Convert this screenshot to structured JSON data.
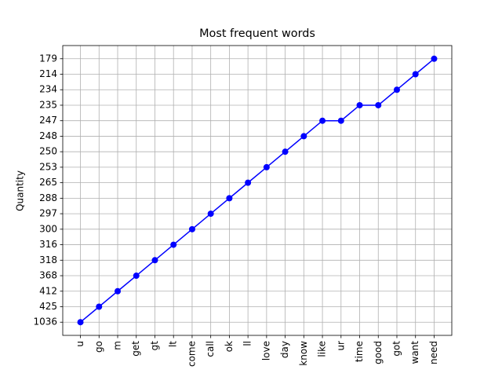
{
  "chart_data": {
    "type": "line",
    "title": "Most frequent words",
    "y_label": "Quantity",
    "categories": [
      "u",
      "go",
      "m",
      "get",
      "gt",
      "lt",
      "come",
      "call",
      "ok",
      "ll",
      "love",
      "day",
      "know",
      "like",
      "ur",
      "time",
      "good",
      "got",
      "want",
      "need"
    ],
    "values": [
      1036,
      425,
      412,
      368,
      318,
      316,
      300,
      297,
      288,
      265,
      253,
      250,
      248,
      247,
      247,
      235,
      235,
      234,
      214,
      179
    ],
    "y_categorical": true,
    "color": "#0000ff",
    "marker": "circle",
    "grid": true
  }
}
